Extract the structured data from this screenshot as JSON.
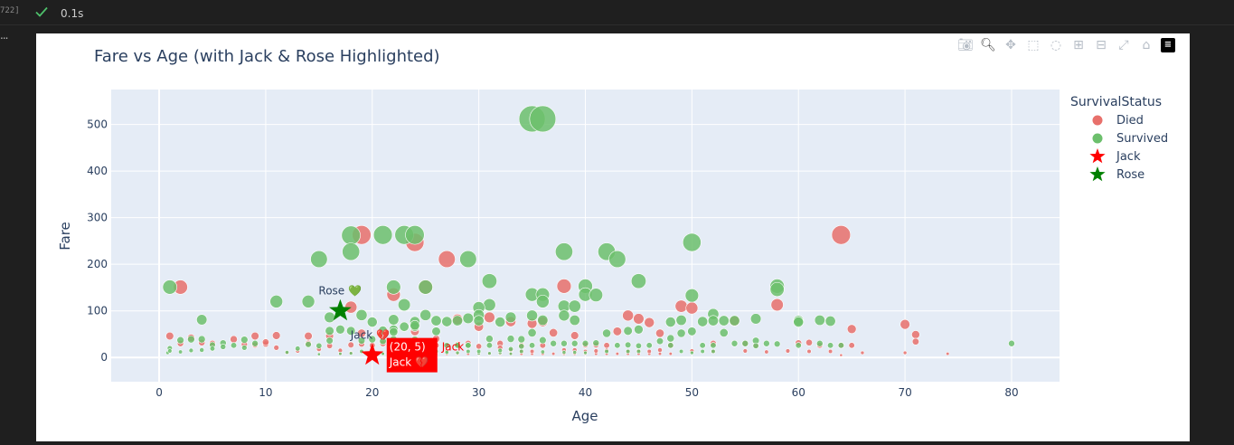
{
  "cell": {
    "number": "722]",
    "exec_time": "0.1s",
    "more": "..."
  },
  "colors": {
    "died": "#e8706b",
    "survived": "#6cbf6c",
    "jack": "#ff0000",
    "rose": "#008000",
    "plot_bg": "#e5ecf6"
  },
  "chart_data": {
    "type": "scatter",
    "title": "Fare vs Age (with Jack & Rose Highlighted)",
    "xlabel": "Age",
    "ylabel": "Fare",
    "xlim": [
      -4.5,
      84.5
    ],
    "ylim": [
      -52,
      575
    ],
    "xticks": [
      0,
      10,
      20,
      30,
      40,
      50,
      60,
      70,
      80
    ],
    "yticks": [
      0,
      100,
      200,
      300,
      400,
      500
    ],
    "legend": {
      "title": "SurvivalStatus",
      "position": "top-right",
      "entries": [
        "Died",
        "Survived",
        "Jack",
        "Rose"
      ]
    },
    "series": [
      {
        "name": "Died",
        "color": "#e8706b",
        "points": [
          [
            2,
            151
          ],
          [
            19,
            263
          ],
          [
            24,
            247
          ],
          [
            22,
            135
          ],
          [
            25,
            151
          ],
          [
            27,
            211
          ],
          [
            38,
            153
          ],
          [
            64,
            263
          ],
          [
            58,
            113
          ],
          [
            49,
            110
          ],
          [
            50,
            106
          ],
          [
            44,
            90
          ],
          [
            45,
            83
          ],
          [
            46,
            75
          ],
          [
            47,
            52
          ],
          [
            30,
            66
          ],
          [
            28,
            82
          ],
          [
            18,
            108
          ],
          [
            31,
            86
          ],
          [
            33,
            77
          ],
          [
            35,
            73
          ],
          [
            36,
            77
          ],
          [
            24,
            56
          ],
          [
            26,
            40
          ],
          [
            19,
            52
          ],
          [
            37,
            53
          ],
          [
            39,
            47
          ],
          [
            43,
            56
          ],
          [
            54,
            78
          ],
          [
            61,
            32
          ],
          [
            65,
            61
          ],
          [
            70,
            71
          ],
          [
            71,
            49
          ],
          [
            29,
            30
          ],
          [
            32,
            30
          ],
          [
            34,
            26
          ],
          [
            36,
            26
          ],
          [
            40,
            27
          ],
          [
            41,
            27
          ],
          [
            42,
            26
          ],
          [
            48,
            26
          ],
          [
            52,
            30
          ],
          [
            55,
            30
          ],
          [
            56,
            26
          ],
          [
            62,
            26
          ],
          [
            64,
            26
          ],
          [
            65,
            26
          ],
          [
            70,
            10
          ],
          [
            71,
            34
          ],
          [
            74,
            8
          ],
          [
            59,
            14
          ],
          [
            57,
            12
          ],
          [
            66,
            10
          ],
          [
            45,
            14
          ],
          [
            47,
            16
          ],
          [
            60,
            31
          ],
          [
            1,
            46
          ],
          [
            3,
            42
          ],
          [
            4,
            32
          ],
          [
            9,
            46
          ],
          [
            11,
            47
          ],
          [
            14,
            46
          ],
          [
            16,
            46
          ],
          [
            17,
            8
          ],
          [
            18,
            10
          ],
          [
            20,
            9
          ],
          [
            21,
            8
          ],
          [
            22,
            8
          ],
          [
            23,
            8
          ],
          [
            24,
            7
          ],
          [
            25,
            7
          ],
          [
            26,
            8
          ],
          [
            27,
            8
          ],
          [
            28,
            8
          ],
          [
            29,
            8
          ],
          [
            30,
            8
          ],
          [
            31,
            8
          ],
          [
            32,
            8
          ],
          [
            33,
            8
          ],
          [
            34,
            8
          ],
          [
            35,
            8
          ],
          [
            36,
            8
          ],
          [
            37,
            8
          ],
          [
            38,
            8
          ],
          [
            39,
            8
          ],
          [
            40,
            8
          ],
          [
            41,
            8
          ],
          [
            42,
            8
          ],
          [
            43,
            8
          ],
          [
            44,
            8
          ],
          [
            45,
            8
          ],
          [
            46,
            8
          ],
          [
            47,
            8
          ],
          [
            48,
            8
          ],
          [
            2,
            30
          ],
          [
            5,
            30
          ],
          [
            7,
            39
          ],
          [
            8,
            28
          ],
          [
            9,
            27
          ],
          [
            10,
            29
          ],
          [
            14,
            30
          ],
          [
            16,
            25
          ],
          [
            18,
            27
          ],
          [
            19,
            29
          ],
          [
            20,
            26
          ],
          [
            21,
            30
          ],
          [
            22,
            26
          ],
          [
            23,
            24
          ],
          [
            24,
            27
          ],
          [
            26,
            26
          ],
          [
            28,
            28
          ],
          [
            30,
            24
          ],
          [
            32,
            21
          ],
          [
            33,
            16
          ],
          [
            34,
            13
          ],
          [
            35,
            13
          ],
          [
            38,
            16
          ],
          [
            39,
            16
          ],
          [
            40,
            13
          ],
          [
            41,
            14
          ],
          [
            42,
            15
          ],
          [
            44,
            13
          ],
          [
            46,
            13
          ],
          [
            50,
            14
          ],
          [
            52,
            13
          ],
          [
            55,
            14
          ],
          [
            61,
            13
          ],
          [
            63,
            13
          ],
          [
            64,
            5
          ],
          [
            17,
            15
          ],
          [
            13,
            14
          ],
          [
            12,
            10
          ],
          [
            11,
            21
          ],
          [
            15,
            18
          ],
          [
            10,
            33
          ]
        ]
      },
      {
        "name": "Survived",
        "color": "#6cbf6c",
        "points": [
          [
            35,
            512
          ],
          [
            36,
            512
          ],
          [
            18,
            262
          ],
          [
            21,
            263
          ],
          [
            23,
            263
          ],
          [
            24,
            263
          ],
          [
            18,
            227
          ],
          [
            15,
            211
          ],
          [
            29,
            211
          ],
          [
            38,
            227
          ],
          [
            42,
            227
          ],
          [
            43,
            211
          ],
          [
            50,
            247
          ],
          [
            1,
            151
          ],
          [
            22,
            151
          ],
          [
            25,
            151
          ],
          [
            40,
            153
          ],
          [
            31,
            164
          ],
          [
            45,
            164
          ],
          [
            58,
            153
          ],
          [
            58,
            146
          ],
          [
            11,
            120
          ],
          [
            14,
            120
          ],
          [
            23,
            113
          ],
          [
            31,
            113
          ],
          [
            35,
            135
          ],
          [
            36,
            135
          ],
          [
            36,
            120
          ],
          [
            40,
            135
          ],
          [
            41,
            134
          ],
          [
            38,
            110
          ],
          [
            39,
            110
          ],
          [
            30,
            107
          ],
          [
            30,
            91
          ],
          [
            50,
            133
          ],
          [
            52,
            93
          ],
          [
            53,
            79
          ],
          [
            54,
            79
          ],
          [
            60,
            79
          ],
          [
            62,
            80
          ],
          [
            63,
            78
          ],
          [
            56,
            83
          ],
          [
            4,
            81
          ],
          [
            16,
            86
          ],
          [
            19,
            91
          ],
          [
            22,
            81
          ],
          [
            24,
            77
          ],
          [
            25,
            91
          ],
          [
            26,
            79
          ],
          [
            27,
            77
          ],
          [
            28,
            79
          ],
          [
            30,
            79
          ],
          [
            32,
            76
          ],
          [
            33,
            86
          ],
          [
            35,
            90
          ],
          [
            36,
            80
          ],
          [
            38,
            90
          ],
          [
            39,
            80
          ],
          [
            42,
            52
          ],
          [
            44,
            57
          ],
          [
            45,
            60
          ],
          [
            48,
            76
          ],
          [
            49,
            80
          ],
          [
            49,
            52
          ],
          [
            51,
            77
          ],
          [
            52,
            79
          ],
          [
            53,
            53
          ],
          [
            57,
            30
          ],
          [
            60,
            76
          ],
          [
            16,
            57
          ],
          [
            20,
            39
          ],
          [
            21,
            35
          ],
          [
            22,
            39
          ],
          [
            23,
            31
          ],
          [
            24,
            38
          ],
          [
            25,
            31
          ],
          [
            27,
            26
          ],
          [
            28,
            26
          ],
          [
            29,
            26
          ],
          [
            31,
            26
          ],
          [
            31,
            40
          ],
          [
            33,
            40
          ],
          [
            34,
            39
          ],
          [
            35,
            53
          ],
          [
            36,
            37
          ],
          [
            37,
            30
          ],
          [
            38,
            30
          ],
          [
            39,
            30
          ],
          [
            40,
            30
          ],
          [
            41,
            31
          ],
          [
            43,
            26
          ],
          [
            44,
            27
          ],
          [
            45,
            25
          ],
          [
            48,
            41
          ],
          [
            50,
            56
          ],
          [
            51,
            26
          ],
          [
            52,
            26
          ],
          [
            55,
            30
          ],
          [
            56,
            36
          ],
          [
            62,
            30
          ],
          [
            64,
            26
          ],
          [
            80,
            30
          ],
          [
            1,
            20
          ],
          [
            2,
            37
          ],
          [
            3,
            39
          ],
          [
            4,
            39
          ],
          [
            5,
            27
          ],
          [
            6,
            31
          ],
          [
            8,
            38
          ],
          [
            9,
            30
          ],
          [
            13,
            19
          ],
          [
            14,
            28
          ],
          [
            15,
            25
          ],
          [
            16,
            36
          ],
          [
            17,
            60
          ],
          [
            18,
            57
          ],
          [
            19,
            36
          ],
          [
            20,
            15
          ],
          [
            22,
            60
          ],
          [
            23,
            66
          ],
          [
            24,
            66
          ],
          [
            26,
            56
          ],
          [
            27,
            13
          ],
          [
            28,
            10
          ],
          [
            29,
            13
          ],
          [
            30,
            9
          ],
          [
            31,
            9
          ],
          [
            32,
            10
          ],
          [
            33,
            8
          ],
          [
            34,
            13
          ],
          [
            35,
            26
          ],
          [
            36,
            12
          ],
          [
            38,
            11
          ],
          [
            39,
            11
          ],
          [
            40,
            10
          ],
          [
            42,
            13
          ],
          [
            44,
            13
          ],
          [
            45,
            13
          ],
          [
            46,
            26
          ],
          [
            47,
            35
          ],
          [
            48,
            26
          ],
          [
            49,
            13
          ],
          [
            50,
            10
          ],
          [
            51,
            13
          ],
          [
            52,
            13
          ],
          [
            54,
            30
          ],
          [
            56,
            25
          ],
          [
            58,
            29
          ],
          [
            60,
            26
          ],
          [
            63,
            26
          ],
          [
            0.8,
            10
          ],
          [
            1,
            14
          ],
          [
            2,
            12
          ],
          [
            3,
            15
          ],
          [
            4,
            16
          ],
          [
            5,
            19
          ],
          [
            6,
            23
          ],
          [
            7,
            26
          ],
          [
            8,
            21
          ],
          [
            12,
            11
          ],
          [
            15,
            7
          ],
          [
            17,
            8
          ],
          [
            18,
            9
          ],
          [
            19,
            13
          ],
          [
            21,
            8
          ],
          [
            22,
            16
          ],
          [
            24,
            13
          ],
          [
            25,
            8
          ],
          [
            26,
            13
          ],
          [
            27,
            11
          ],
          [
            28,
            26
          ],
          [
            29,
            26
          ],
          [
            30,
            13
          ],
          [
            32,
            15
          ],
          [
            33,
            18
          ],
          [
            34,
            24
          ],
          [
            22,
            55
          ],
          [
            24,
            69
          ],
          [
            21,
            58
          ],
          [
            29,
            84
          ],
          [
            20,
            76
          ]
        ]
      },
      {
        "name": "Jack",
        "color": "#ff0000",
        "points": [
          [
            20,
            5
          ]
        ]
      },
      {
        "name": "Rose",
        "color": "#008000",
        "points": [
          [
            17,
            100
          ]
        ]
      }
    ],
    "annotations": [
      {
        "text": "Rose 💚",
        "x": 17,
        "y": 100,
        "color": "#2a3f5f"
      },
      {
        "text": "Jack 💔",
        "x": 20,
        "y": 5,
        "color": "#2a3f5f"
      },
      {
        "text": "Jack",
        "x": 20,
        "y": 5,
        "color": "#ff0000"
      },
      {
        "text": "(20, 5)",
        "x": 20,
        "y": 5,
        "hover": true
      },
      {
        "text": "Jack 💔",
        "x": 20,
        "y": 5,
        "hover": true
      }
    ]
  }
}
